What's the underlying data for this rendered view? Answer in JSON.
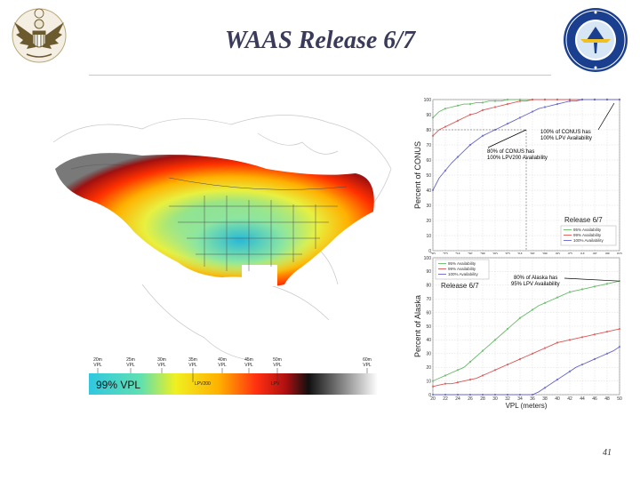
{
  "slide": {
    "title": "WAAS Release 6/7",
    "page_number": "41"
  },
  "map": {
    "colorbar": {
      "ticks": [
        {
          "top": "20m",
          "bottom": "VPL"
        },
        {
          "top": "25m",
          "bottom": "VPL"
        },
        {
          "top": "30m",
          "bottom": "VPL"
        },
        {
          "top": "35m",
          "bottom": "VPL"
        },
        {
          "top": "40m",
          "bottom": "VPL"
        },
        {
          "top": "45m",
          "bottom": "VPL"
        },
        {
          "top": "50m",
          "bottom": "VPL"
        },
        {
          "top": "60m",
          "bottom": "VPL"
        }
      ],
      "caption": "99% VPL",
      "lpv200_label": "LPV200",
      "lpv_label": "LPV"
    }
  },
  "chart_data": [
    {
      "type": "line",
      "title": "",
      "xlabel": "",
      "ylabel": "Percent of CONUS",
      "xlim": [
        20,
        50
      ],
      "ylim": [
        0,
        100
      ],
      "x": [
        20,
        21,
        22,
        23,
        24,
        25,
        26,
        27,
        28,
        29,
        30,
        31,
        32,
        33,
        34,
        35,
        36,
        37,
        38,
        39,
        40,
        41,
        42,
        43,
        44,
        45,
        46,
        47,
        48,
        49,
        50
      ],
      "series": [
        {
          "name": "95% Availability",
          "color": "#66bb66",
          "values": [
            88,
            92,
            94,
            95,
            96,
            97,
            97,
            98,
            98,
            99,
            99,
            99,
            100,
            100,
            100,
            100,
            100,
            100,
            100,
            100,
            100,
            100,
            100,
            100,
            100,
            100,
            100,
            100,
            100,
            100,
            100
          ]
        },
        {
          "name": "99% Availability",
          "color": "#dd5555",
          "values": [
            76,
            80,
            82,
            84,
            86,
            88,
            90,
            91,
            93,
            94,
            95,
            96,
            97,
            98,
            99,
            99,
            100,
            100,
            100,
            100,
            100,
            100,
            100,
            100,
            100,
            100,
            100,
            100,
            100,
            100,
            100
          ]
        },
        {
          "name": "100% Availability",
          "color": "#6666cc",
          "values": [
            40,
            48,
            53,
            58,
            62,
            66,
            70,
            73,
            76,
            78,
            80,
            82,
            84,
            86,
            88,
            90,
            92,
            94,
            95,
            96,
            97,
            98,
            99,
            99,
            100,
            100,
            100,
            100,
            100,
            100,
            100
          ]
        }
      ],
      "xticks": [
        "20",
        "22",
        "24",
        "26",
        "28",
        "30",
        "32",
        "34",
        "36",
        "38",
        "40",
        "42",
        "44",
        "46",
        "48",
        "50"
      ],
      "yticks": [
        "0",
        "10",
        "20",
        "30",
        "40",
        "50",
        "60",
        "70",
        "80",
        "90",
        "100"
      ],
      "annotations": [
        {
          "lines": [
            "100% of CONUS has",
            "100% LPV Availability"
          ]
        },
        {
          "lines": [
            "80% of CONUS has",
            "100% LPV200 Availability"
          ]
        }
      ],
      "legend_title": "Release 6/7",
      "legend_position": "bottom-right",
      "grid": true
    },
    {
      "type": "line",
      "title": "",
      "xlabel": "VPL (meters)",
      "ylabel": "Percent of Alaska",
      "xlim": [
        20,
        50
      ],
      "ylim": [
        0,
        100
      ],
      "x": [
        20,
        21,
        22,
        23,
        24,
        25,
        26,
        27,
        28,
        29,
        30,
        31,
        32,
        33,
        34,
        35,
        36,
        37,
        38,
        39,
        40,
        41,
        42,
        43,
        44,
        45,
        46,
        47,
        48,
        49,
        50
      ],
      "series": [
        {
          "name": "95% Availability",
          "color": "#66bb66",
          "values": [
            10,
            12,
            14,
            16,
            18,
            20,
            24,
            28,
            32,
            36,
            40,
            44,
            48,
            52,
            56,
            59,
            62,
            65,
            67,
            69,
            71,
            73,
            75,
            76,
            77,
            78,
            79,
            80,
            81,
            82,
            83
          ]
        },
        {
          "name": "99% Availability",
          "color": "#dd5555",
          "values": [
            6,
            7,
            8,
            8,
            9,
            10,
            11,
            12,
            14,
            16,
            18,
            20,
            22,
            24,
            26,
            28,
            30,
            32,
            34,
            36,
            38,
            39,
            40,
            41,
            42,
            43,
            44,
            45,
            46,
            47,
            48
          ]
        },
        {
          "name": "100% Availability",
          "color": "#6666cc",
          "values": [
            0,
            0,
            0,
            0,
            0,
            0,
            0,
            0,
            0,
            0,
            0,
            0,
            0,
            0,
            0,
            0,
            0,
            2,
            5,
            8,
            11,
            14,
            17,
            20,
            22,
            24,
            26,
            28,
            30,
            32,
            35
          ]
        }
      ],
      "xticks": [
        "20",
        "22",
        "24",
        "26",
        "28",
        "30",
        "32",
        "34",
        "36",
        "38",
        "40",
        "42",
        "44",
        "46",
        "48",
        "50"
      ],
      "yticks": [
        "0",
        "10",
        "20",
        "30",
        "40",
        "50",
        "60",
        "70",
        "80",
        "90",
        "100"
      ],
      "annotations": [
        {
          "lines": [
            "80% of Alaska has",
            "95% LPV Availability"
          ]
        }
      ],
      "legend_title": "Release 6/7",
      "legend_position": "top-left",
      "grid": true
    }
  ]
}
